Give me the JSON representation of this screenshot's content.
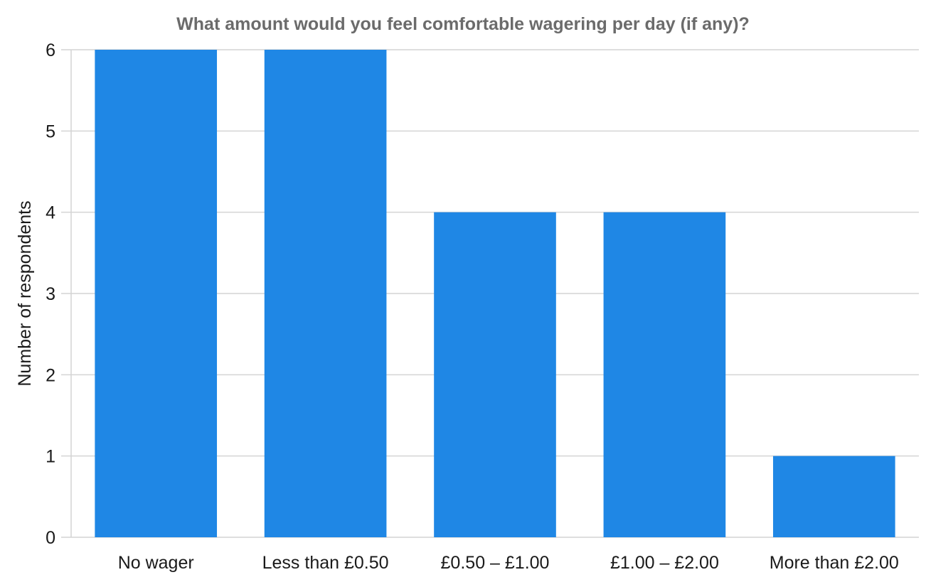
{
  "chart_data": {
    "type": "bar",
    "title": "What amount would you feel comfortable wagering per day (if any)?",
    "xlabel": "",
    "ylabel": "Number of respondents",
    "categories": [
      "No wager",
      "Less than £0.50",
      "£0.50 – £1.00",
      "£1.00 – £2.00",
      "More than £2.00"
    ],
    "values": [
      6,
      6,
      4,
      4,
      1
    ],
    "ylim": [
      0,
      6
    ],
    "yticks": [
      0,
      1,
      2,
      3,
      4,
      5,
      6
    ],
    "grid": true,
    "legend": "none",
    "colors": {
      "bar": "#1f87e5",
      "title": "#6b6b6b",
      "grid": "#d4d4d4",
      "text": "#1a1a1a"
    }
  }
}
